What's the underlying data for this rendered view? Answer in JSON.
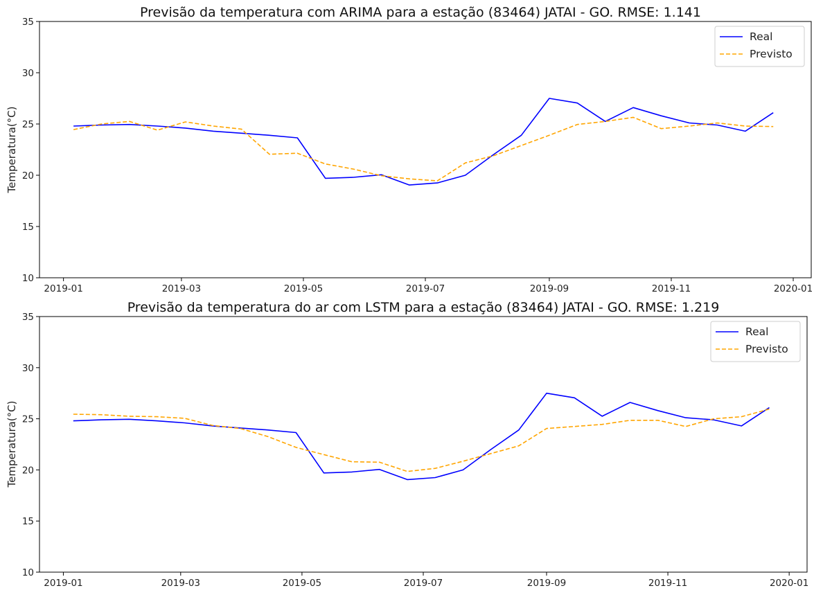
{
  "chart_data": [
    {
      "type": "line",
      "title": "Previsão da temperatura com ARIMA para a estação (83464) JATAI - GO. RMSE: 1.141",
      "xlabel": "",
      "ylabel": "Temperatura(°C)",
      "ylim": [
        10,
        35
      ],
      "yticks": [
        10,
        15,
        20,
        25,
        30,
        35
      ],
      "xlim": [
        "2018-12-20",
        "2020-01-10"
      ],
      "xticks": [
        "2019-01-01",
        "2019-03-01",
        "2019-05-01",
        "2019-07-01",
        "2019-09-01",
        "2019-11-01",
        "2020-01-01"
      ],
      "xtick_labels": [
        "2019-01",
        "2019-03",
        "2019-05",
        "2019-07",
        "2019-09",
        "2019-11",
        "2020-01"
      ],
      "grid": false,
      "legend": "top-right",
      "x": [
        "2019-01-06",
        "2019-01-20",
        "2019-02-03",
        "2019-02-17",
        "2019-03-03",
        "2019-03-17",
        "2019-03-31",
        "2019-04-14",
        "2019-04-28",
        "2019-05-12",
        "2019-05-26",
        "2019-06-09",
        "2019-06-23",
        "2019-07-07",
        "2019-07-21",
        "2019-08-04",
        "2019-08-18",
        "2019-09-01",
        "2019-09-15",
        "2019-09-29",
        "2019-10-13",
        "2019-10-27",
        "2019-11-10",
        "2019-11-24",
        "2019-12-08",
        "2019-12-22"
      ],
      "series": [
        {
          "name": "Real",
          "color": "#0000ff",
          "style": "solid",
          "values": [
            24.8,
            24.9,
            24.95,
            24.8,
            24.6,
            24.3,
            24.1,
            23.9,
            23.65,
            19.7,
            19.8,
            20.05,
            19.05,
            19.25,
            20.0,
            22.0,
            23.9,
            27.5,
            27.05,
            25.25,
            26.6,
            25.8,
            25.1,
            24.9,
            24.3,
            26.1
          ]
        },
        {
          "name": "Previsto",
          "color": "#ffa500",
          "style": "dashed",
          "values": [
            24.45,
            25.0,
            25.25,
            24.4,
            25.2,
            24.8,
            24.5,
            22.05,
            22.15,
            21.1,
            20.6,
            19.95,
            19.65,
            19.45,
            21.2,
            21.9,
            22.9,
            23.9,
            24.95,
            25.25,
            25.65,
            24.55,
            24.8,
            25.1,
            24.8,
            24.75
          ]
        }
      ]
    },
    {
      "type": "line",
      "title": "Previsão da temperatura do ar com LSTM para a estação (83464) JATAI - GO. RMSE: 1.219",
      "xlabel": "",
      "ylabel": "Temperatura(°C)",
      "ylim": [
        10,
        35
      ],
      "yticks": [
        10,
        15,
        20,
        25,
        30,
        35
      ],
      "xlim": [
        "2018-12-20",
        "2020-01-10"
      ],
      "xticks": [
        "2019-01-01",
        "2019-03-01",
        "2019-05-01",
        "2019-07-01",
        "2019-09-01",
        "2019-11-01",
        "2020-01-01"
      ],
      "xtick_labels": [
        "2019-01",
        "2019-03",
        "2019-05",
        "2019-07",
        "2019-09",
        "2019-11",
        "2020-01"
      ],
      "grid": false,
      "legend": "top-right",
      "x": [
        "2019-01-06",
        "2019-01-20",
        "2019-02-03",
        "2019-02-17",
        "2019-03-03",
        "2019-03-17",
        "2019-03-31",
        "2019-04-14",
        "2019-04-28",
        "2019-05-12",
        "2019-05-26",
        "2019-06-09",
        "2019-06-23",
        "2019-07-07",
        "2019-07-21",
        "2019-08-04",
        "2019-08-18",
        "2019-09-01",
        "2019-09-15",
        "2019-09-29",
        "2019-10-13",
        "2019-10-27",
        "2019-11-10",
        "2019-11-24",
        "2019-12-08",
        "2019-12-22"
      ],
      "series": [
        {
          "name": "Real",
          "color": "#0000ff",
          "style": "solid",
          "values": [
            24.8,
            24.9,
            24.95,
            24.8,
            24.6,
            24.3,
            24.1,
            23.9,
            23.65,
            19.7,
            19.8,
            20.05,
            19.05,
            19.25,
            20.0,
            22.0,
            23.9,
            27.5,
            27.05,
            25.25,
            26.6,
            25.8,
            25.1,
            24.9,
            24.3,
            26.1
          ]
        },
        {
          "name": "Previsto",
          "color": "#ffa500",
          "style": "dashed",
          "values": [
            25.45,
            25.4,
            25.25,
            25.2,
            25.05,
            24.35,
            24.05,
            23.25,
            22.2,
            21.5,
            20.8,
            20.75,
            19.85,
            20.15,
            20.85,
            21.6,
            22.35,
            24.05,
            24.25,
            24.45,
            24.85,
            24.85,
            24.25,
            25.0,
            25.2,
            25.95
          ]
        }
      ]
    }
  ]
}
